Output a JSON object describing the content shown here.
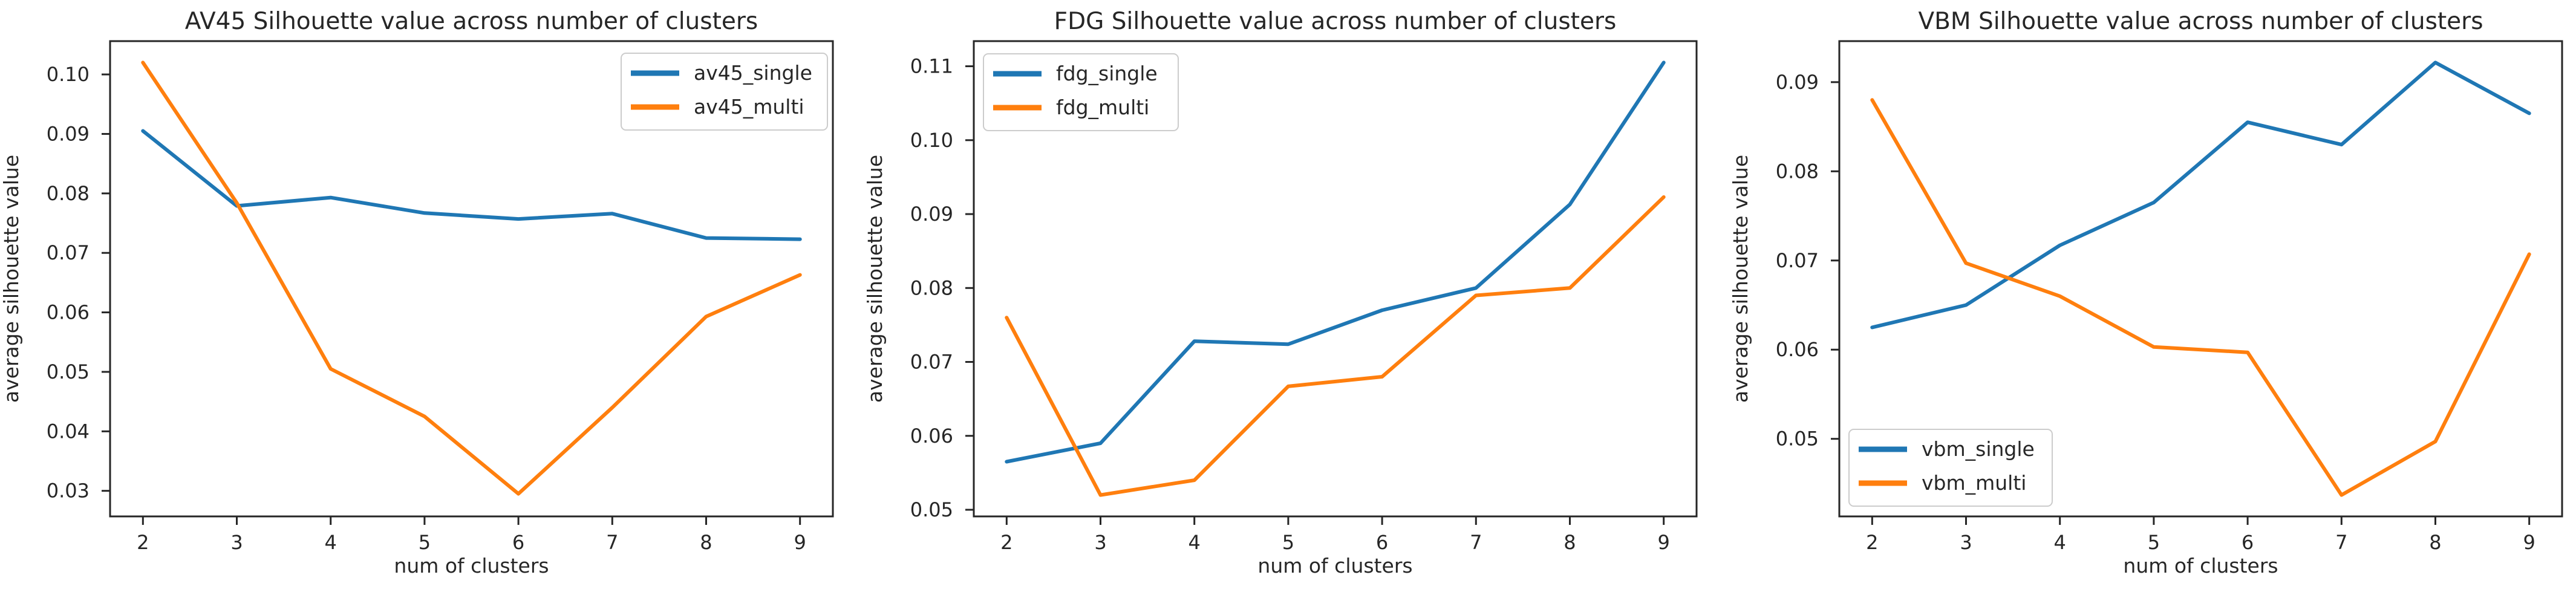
{
  "figure": {
    "background": "#ffffff",
    "frame_color": "#262626",
    "text_color": "#262626",
    "legend_border_color": "#cccccc"
  },
  "chart_data": [
    {
      "type": "line",
      "title": "AV45 Silhouette value across number of clusters",
      "xlabel": "num of clusters",
      "ylabel": "average silhouette value",
      "x": [
        2,
        3,
        4,
        5,
        6,
        7,
        8,
        9
      ],
      "x_ticks": [
        2,
        3,
        4,
        5,
        6,
        7,
        8,
        9
      ],
      "y_ticks": [
        0.03,
        0.04,
        0.05,
        0.06,
        0.07,
        0.08,
        0.09,
        0.1
      ],
      "xlim": [
        1.65,
        9.35
      ],
      "ylim": [
        0.0257,
        0.1056
      ],
      "grid": false,
      "legend_position": "upper-right",
      "series": [
        {
          "name": "av45_single",
          "color": "#1f77b4",
          "values": [
            0.0905,
            0.0779,
            0.0793,
            0.0767,
            0.0757,
            0.0766,
            0.0725,
            0.0723
          ]
        },
        {
          "name": "av45_multi",
          "color": "#ff7f0e",
          "values": [
            0.102,
            0.0784,
            0.0505,
            0.0425,
            0.0295,
            0.044,
            0.0593,
            0.0663
          ]
        }
      ]
    },
    {
      "type": "line",
      "title": "FDG Silhouette value across number of clusters",
      "xlabel": "num of clusters",
      "ylabel": "average silhouette value",
      "x": [
        2,
        3,
        4,
        5,
        6,
        7,
        8,
        9
      ],
      "x_ticks": [
        2,
        3,
        4,
        5,
        6,
        7,
        8,
        9
      ],
      "y_ticks": [
        0.05,
        0.06,
        0.07,
        0.08,
        0.09,
        0.1,
        0.11
      ],
      "xlim": [
        1.65,
        9.35
      ],
      "ylim": [
        0.0491,
        0.1134
      ],
      "grid": false,
      "legend_position": "upper-left",
      "series": [
        {
          "name": "fdg_single",
          "color": "#1f77b4",
          "values": [
            0.0565,
            0.059,
            0.0728,
            0.0724,
            0.077,
            0.08,
            0.0913,
            0.1105
          ]
        },
        {
          "name": "fdg_multi",
          "color": "#ff7f0e",
          "values": [
            0.076,
            0.052,
            0.054,
            0.0667,
            0.068,
            0.079,
            0.08,
            0.0923
          ]
        }
      ]
    },
    {
      "type": "line",
      "title": "VBM Silhouette value across number of clusters",
      "xlabel": "num of clusters",
      "ylabel": "average silhouette value",
      "x": [
        2,
        3,
        4,
        5,
        6,
        7,
        8,
        9
      ],
      "x_ticks": [
        2,
        3,
        4,
        5,
        6,
        7,
        8,
        9
      ],
      "y_ticks": [
        0.05,
        0.06,
        0.07,
        0.08,
        0.09
      ],
      "xlim": [
        1.65,
        9.35
      ],
      "ylim": [
        0.0413,
        0.0946
      ],
      "grid": false,
      "legend_position": "lower-left",
      "series": [
        {
          "name": "vbm_single",
          "color": "#1f77b4",
          "values": [
            0.0625,
            0.065,
            0.0717,
            0.0765,
            0.0855,
            0.083,
            0.0922,
            0.0865
          ]
        },
        {
          "name": "vbm_multi",
          "color": "#ff7f0e",
          "values": [
            0.088,
            0.0697,
            0.066,
            0.0603,
            0.0597,
            0.0437,
            0.0497,
            0.0707
          ]
        }
      ]
    }
  ]
}
